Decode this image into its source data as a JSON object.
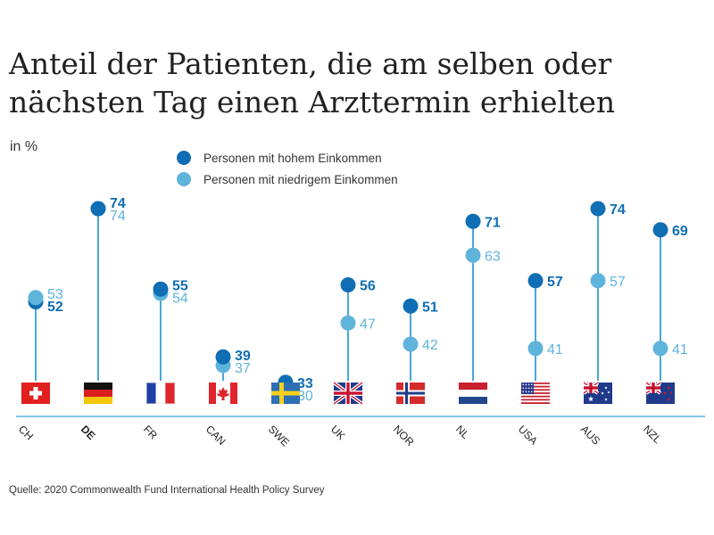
{
  "title": "Anteil der Patienten, die am selben oder nächsten Tag einen Arzttermin erhielten",
  "unit": "in %",
  "legend": [
    {
      "label": "Personen mit hohem Einkommen",
      "color": "#0f6eb4"
    },
    {
      "label": "Personen mit niedrigem Einkommen",
      "color": "#5fb4dc"
    }
  ],
  "source": "Quelle: 2020 Commonwealth Fund International Health Policy Survey",
  "colors": {
    "high": "#0f6eb4",
    "low": "#5fb4dc",
    "stem": "#4aa8d8",
    "baseline": "#5fb4dc"
  },
  "chart_data": {
    "type": "dot-plot",
    "categories": [
      "CH",
      "DE",
      "FR",
      "CAN",
      "SWE",
      "UK",
      "NOR",
      "NL",
      "USA",
      "AUS",
      "NZL"
    ],
    "highlighted_category": "DE",
    "series": [
      {
        "name": "Personen mit hohem Einkommen",
        "values": [
          52,
          74,
          55,
          39,
          33,
          56,
          51,
          71,
          57,
          74,
          69
        ]
      },
      {
        "name": "Personen mit niedrigem Einkommen",
        "values": [
          53,
          74,
          54,
          37,
          30,
          47,
          42,
          63,
          41,
          57,
          41
        ]
      }
    ],
    "flags": [
      "flag-switzerland",
      "flag-germany",
      "flag-france",
      "flag-canada",
      "flag-sweden",
      "flag-uk",
      "flag-norway",
      "flag-netherlands",
      "flag-usa",
      "flag-australia",
      "flag-new-zealand"
    ],
    "xlabel": "",
    "ylabel": ""
  }
}
